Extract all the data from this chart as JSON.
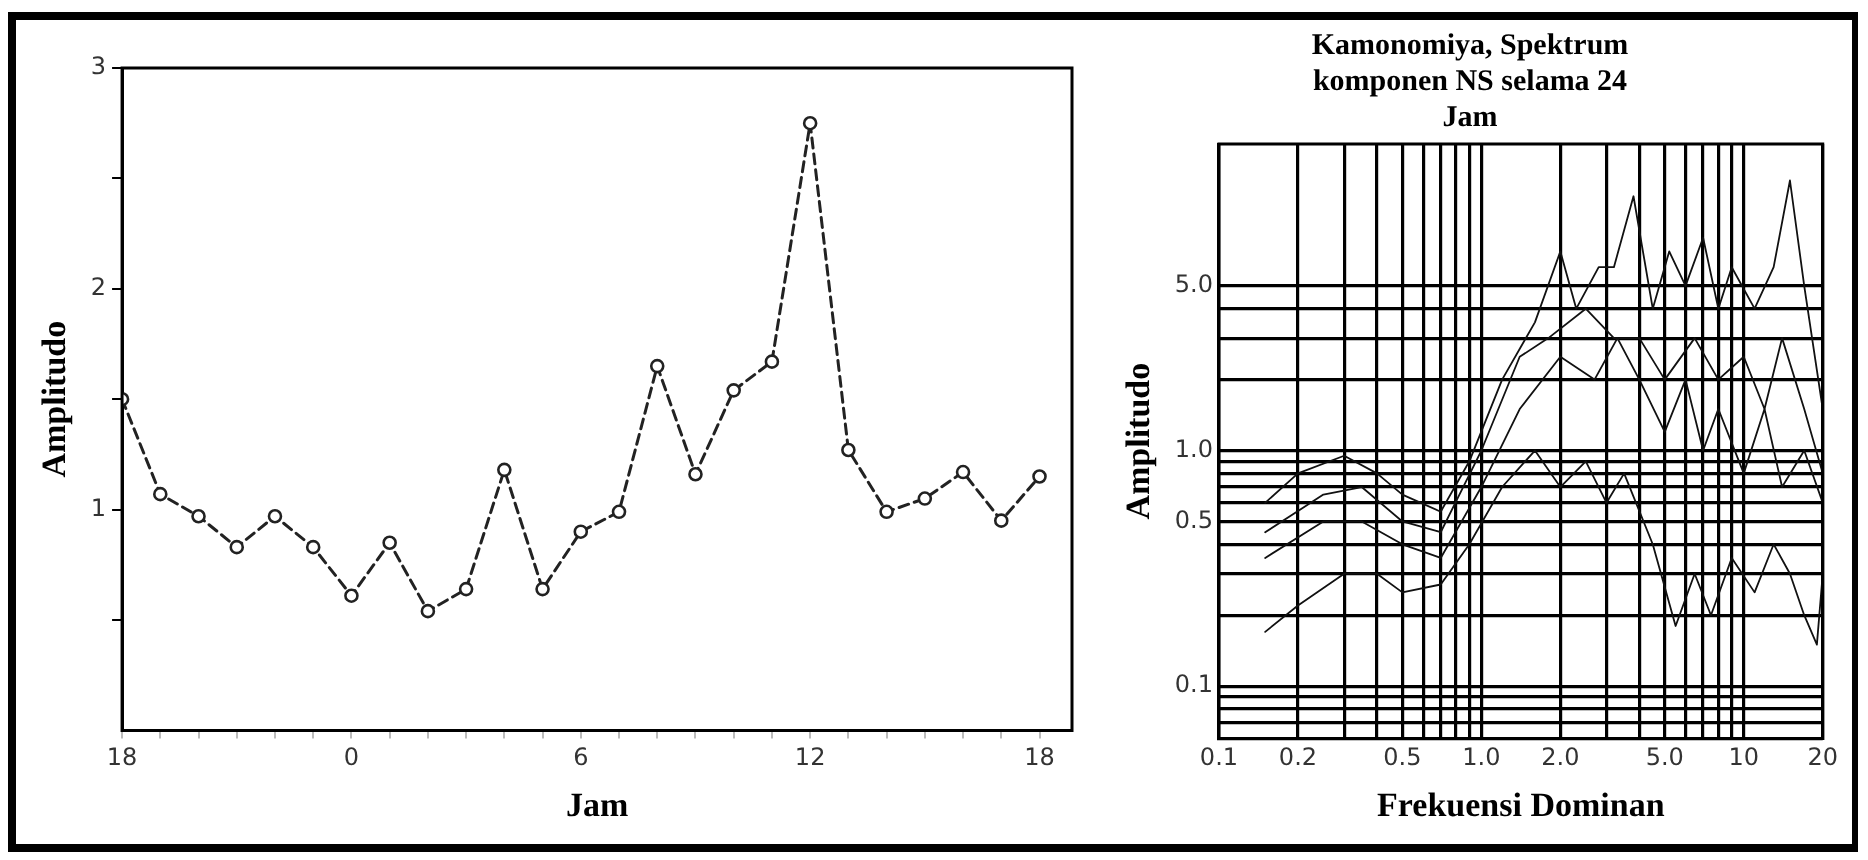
{
  "chart_data": [
    {
      "type": "line",
      "xlabel": "Jam",
      "ylabel": "Amplitudo",
      "categories": [
        "18",
        null,
        null,
        null,
        null,
        null,
        "0",
        null,
        null,
        null,
        null,
        null,
        "6",
        null,
        null,
        null,
        null,
        null,
        "12",
        null,
        null,
        null,
        null,
        null,
        "18"
      ],
      "series": [
        {
          "color": "#222222",
          "values": [
            1.5,
            1.07,
            0.97,
            0.83,
            0.97,
            0.83,
            0.61,
            0.85,
            0.54,
            0.64,
            1.18,
            0.64,
            0.9,
            0.99,
            1.65,
            1.16,
            1.54,
            1.67,
            2.75,
            1.27,
            0.99,
            1.05,
            1.17,
            0.95,
            1.15
          ]
        }
      ],
      "ylim": [
        0,
        3
      ],
      "yticks": [
        {
          "value": 0.5,
          "label": null
        },
        1,
        {
          "value": 1.5,
          "label": null
        },
        2,
        {
          "value": 2.5,
          "label": null
        },
        3
      ],
      "marker": "circle",
      "line_style": "dashed",
      "grid": false
    },
    {
      "type": "line",
      "title": "Kamonomiya, Spektrum komponen NS selama 24 Jam",
      "xlabel": "Frekuensi Dominan",
      "ylabel": "Amplitudo",
      "series": [
        {
          "color": "#111111",
          "x": [
            0.15,
            0.2,
            0.3,
            0.4,
            0.5,
            0.7,
            0.9,
            1.2,
            1.6,
            2.0,
            2.3,
            2.8,
            3.2,
            3.8,
            4.5,
            5.2,
            6,
            7,
            8,
            9,
            11,
            13,
            15,
            17,
            20
          ],
          "values": [
            0.6,
            0.8,
            0.95,
            0.8,
            0.65,
            0.55,
            0.9,
            2,
            3.5,
            7,
            4,
            6,
            6,
            12,
            4,
            7,
            5,
            8,
            4,
            6,
            4,
            6,
            14,
            5,
            1.5
          ]
        },
        {
          "color": "#111111",
          "x": [
            0.15,
            0.2,
            0.3,
            0.4,
            0.5,
            0.7,
            0.9,
            1.2,
            1.6,
            2,
            2.5,
            3,
            3.5,
            4.5,
            5.5,
            6.5,
            7.5,
            9,
            11,
            13,
            15,
            17,
            19,
            20
          ],
          "values": [
            0.17,
            0.22,
            0.3,
            0.3,
            0.25,
            0.27,
            0.4,
            0.7,
            1.0,
            0.7,
            0.9,
            0.6,
            0.8,
            0.4,
            0.18,
            0.3,
            0.2,
            0.35,
            0.25,
            0.4,
            0.3,
            0.2,
            0.15,
            0.3
          ]
        },
        {
          "color": "#111111",
          "x": [
            0.15,
            0.25,
            0.35,
            0.5,
            0.7,
            1,
            1.4,
            2,
            2.7,
            3.3,
            4,
            5,
            6,
            7,
            8,
            10,
            12,
            14,
            17,
            20
          ],
          "values": [
            0.35,
            0.5,
            0.5,
            0.4,
            0.35,
            0.7,
            1.5,
            2.5,
            2,
            3,
            2,
            1.2,
            2,
            1,
            1.5,
            0.8,
            1.5,
            0.7,
            1,
            0.6
          ]
        },
        {
          "color": "#111111",
          "x": [
            0.15,
            0.25,
            0.35,
            0.5,
            0.7,
            1,
            1.4,
            1.8,
            2.5,
            3.2,
            4,
            5,
            6.5,
            8,
            10,
            12,
            14,
            17,
            20
          ],
          "values": [
            0.45,
            0.65,
            0.7,
            0.5,
            0.45,
            1,
            2.5,
            3,
            4,
            3,
            3,
            2,
            3,
            2,
            2.5,
            1.5,
            3,
            1.5,
            0.8
          ]
        }
      ],
      "log": "xy",
      "xlim": [
        0.1,
        20
      ],
      "ylim": [
        0.06,
        20
      ],
      "xticks": [
        0.1,
        0.2,
        {
          "value": 0.3,
          "label": null
        },
        {
          "value": 0.4,
          "label": null
        },
        0.5,
        {
          "value": 0.6,
          "label": null
        },
        {
          "value": 0.7,
          "label": null
        },
        {
          "value": 0.8,
          "label": null
        },
        {
          "value": 0.9,
          "label": null
        },
        {
          "value": 1,
          "label": "1.0"
        },
        {
          "value": 2,
          "label": "2.0"
        },
        {
          "value": 3,
          "label": null
        },
        {
          "value": 4,
          "label": null
        },
        {
          "value": 5,
          "label": "5.0"
        },
        {
          "value": 6,
          "label": null
        },
        {
          "value": 7,
          "label": null
        },
        {
          "value": 8,
          "label": null
        },
        {
          "value": 9,
          "label": null
        },
        10,
        20
      ],
      "yticks": [
        {
          "value": 0.06,
          "label": null
        },
        {
          "value": 0.07,
          "label": null
        },
        {
          "value": 0.08,
          "label": null
        },
        {
          "value": 0.09,
          "label": null
        },
        0.1,
        {
          "value": 0.2,
          "label": null
        },
        {
          "value": 0.3,
          "label": null
        },
        {
          "value": 0.4,
          "label": null
        },
        0.5,
        {
          "value": 0.6,
          "label": null
        },
        {
          "value": 0.7,
          "label": null
        },
        {
          "value": 0.8,
          "label": null
        },
        {
          "value": 0.9,
          "label": null
        },
        {
          "value": 1,
          "label": "1.0"
        },
        {
          "value": 2,
          "label": null
        },
        {
          "value": 3,
          "label": null
        },
        {
          "value": 4,
          "label": null
        },
        {
          "value": 5,
          "label": "5.0"
        }
      ],
      "marker": "none",
      "line_style": "solid",
      "grid": true
    }
  ]
}
